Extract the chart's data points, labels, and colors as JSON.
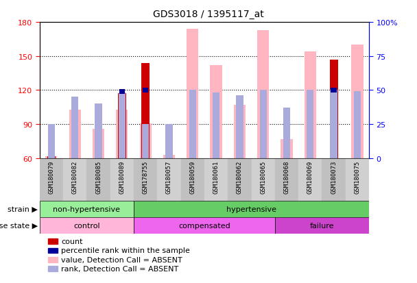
{
  "title": "GDS3018 / 1395117_at",
  "samples": [
    "GSM180079",
    "GSM180082",
    "GSM180085",
    "GSM180089",
    "GSM178755",
    "GSM180057",
    "GSM180059",
    "GSM180061",
    "GSM180062",
    "GSM180065",
    "GSM180068",
    "GSM180069",
    "GSM180073",
    "GSM180075"
  ],
  "count_values": [
    62,
    0,
    0,
    117,
    144,
    0,
    0,
    0,
    0,
    0,
    0,
    0,
    147,
    0
  ],
  "percentile_values": [
    0,
    0,
    0,
    49,
    50,
    0,
    0,
    0,
    0,
    0,
    0,
    0,
    50,
    0
  ],
  "value_absent": [
    62,
    103,
    86,
    103,
    91,
    63,
    174,
    142,
    107,
    173,
    77,
    154,
    0,
    160
  ],
  "rank_absent": [
    25,
    45,
    40,
    48,
    25,
    25,
    50,
    48,
    46,
    50,
    37,
    50,
    50,
    49
  ],
  "ylim_left": [
    60,
    180
  ],
  "ylim_right": [
    0,
    100
  ],
  "yticks_left": [
    60,
    90,
    120,
    150,
    180
  ],
  "yticks_right": [
    0,
    25,
    50,
    75,
    100
  ],
  "count_color": "#CC0000",
  "percentile_color": "#000099",
  "value_absent_color": "#FFB6C1",
  "rank_absent_color": "#AAAADD",
  "strain_non_hypertensive_color": "#99EE99",
  "strain_hypertensive_color": "#66CC66",
  "disease_control_color": "#FFB6D9",
  "disease_compensated_color": "#EE66EE",
  "disease_failure_color": "#CC44CC"
}
